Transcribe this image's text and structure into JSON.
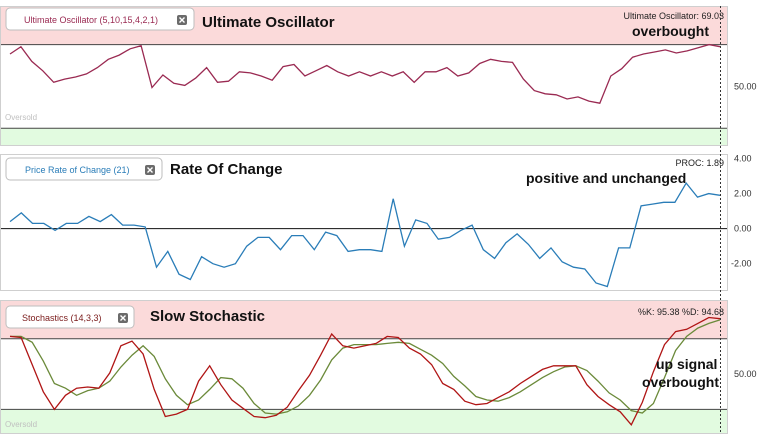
{
  "colors": {
    "overbought_band": "#fbdada",
    "oversold_band": "#e2fbe0",
    "band_line": "#444444",
    "uo_line": "#9a2a52",
    "uo_badge_text": "#9a2a52",
    "roc_line": "#2a7db8",
    "roc_badge_text": "#2a7db8",
    "stoch_k": "#b01515",
    "stoch_d": "#6b8a3a",
    "stoch_badge_text": "#7a1a1a",
    "zero_line": "#111111"
  },
  "panels": {
    "uo": {
      "badge_label": "Ultimate Oscillator (5,10,15,4,2,1)",
      "title": "Ultimate Oscillator",
      "readout": "Ultimate Oscillator: 69.03",
      "annotation": "overbought",
      "tick_label": "50.00",
      "oversold_label": "Oversold"
    },
    "roc": {
      "badge_label": "Price Rate of Change (21)",
      "title": "Rate Of Change",
      "readout": "PROC: 1.89",
      "annotation": "positive and unchanged",
      "tick_labels": [
        "4.00",
        "2.00",
        "0.00",
        "-2.00"
      ]
    },
    "stoch": {
      "badge_label": "Stochastics (14,3,3)",
      "title": "Slow Stochastic",
      "readout": "%K: 95.38 %D: 94.68",
      "annotation_line1": "up signal",
      "annotation_line2": "overbought",
      "tick_label": "50.00",
      "oversold_label": "Oversold"
    }
  },
  "chart_data": [
    {
      "type": "line",
      "name": "uo-panel",
      "title": "Ultimate Oscillator (5,10,15,4,2,1)",
      "ylim": [
        22,
        88
      ],
      "overbought": 70,
      "oversold": 30,
      "yticks": [
        50
      ],
      "series": [
        {
          "name": "Ultimate Oscillator",
          "values": [
            65.5,
            69,
            62,
            57.5,
            52,
            53.5,
            54.5,
            56,
            59,
            63,
            65,
            68,
            69.5,
            49.5,
            55.5,
            51.5,
            50.5,
            54,
            59,
            52,
            52.5,
            57,
            56.5,
            55,
            53,
            59.5,
            60.5,
            55,
            57.5,
            60,
            57,
            55,
            57,
            55,
            57,
            55,
            57,
            52,
            57,
            57,
            59,
            55,
            56.5,
            61,
            63,
            62,
            61.5,
            53.5,
            48,
            46.5,
            46,
            44,
            45,
            43,
            42,
            55,
            58.5,
            64,
            65.5,
            66.5,
            67.5,
            66,
            67,
            68.5,
            70,
            69
          ]
        }
      ]
    },
    {
      "type": "line",
      "name": "roc-panel",
      "title": "Price Rate of Change (21)",
      "ylim": [
        -3.5,
        4.2
      ],
      "zero": 0,
      "yticks": [
        4,
        2,
        0,
        -2
      ],
      "series": [
        {
          "name": "PROC",
          "values": [
            0.4,
            0.9,
            0.3,
            0.3,
            -0.1,
            0.3,
            0.3,
            0.7,
            0.4,
            0.8,
            0.2,
            0.2,
            0.1,
            -2.2,
            -1.3,
            -2.6,
            -2.9,
            -1.6,
            -2.0,
            -2.2,
            -2.0,
            -1.0,
            -0.5,
            -0.5,
            -1.2,
            -0.4,
            -0.4,
            -1.2,
            -0.2,
            -0.4,
            -1.3,
            -1.2,
            -1.2,
            -1.3,
            1.7,
            -1.0,
            0.5,
            0.3,
            -0.6,
            -0.5,
            -0.1,
            0.2,
            -1.2,
            -1.7,
            -0.8,
            -0.3,
            -0.9,
            -1.7,
            -1.1,
            -1.9,
            -2.2,
            -2.3,
            -3.1,
            -3.3,
            -1.1,
            -1.1,
            1.3,
            1.4,
            1.5,
            1.5,
            2.6,
            1.8,
            2.0,
            1.9
          ]
        }
      ]
    },
    {
      "type": "line",
      "name": "stoch-panel",
      "title": "Stochastics (14,3,3)",
      "ylim": [
        0,
        112
      ],
      "overbought": 80,
      "oversold": 20,
      "yticks": [
        50
      ],
      "series": [
        {
          "name": "%K",
          "values": [
            82,
            81,
            58,
            35,
            20,
            32,
            38,
            39,
            38,
            51,
            74,
            78,
            67,
            37,
            14,
            16,
            20,
            44,
            57,
            41,
            28,
            21,
            14,
            13,
            15,
            22,
            36,
            49,
            66,
            84,
            74,
            72,
            74,
            76,
            82,
            81,
            72,
            67,
            58,
            42,
            37,
            27,
            24,
            25,
            30,
            35,
            42,
            48,
            54,
            57,
            57,
            57,
            41,
            31,
            24,
            18,
            7,
            26,
            52,
            75,
            86,
            88,
            93,
            98,
            97
          ]
        },
        {
          "name": "%D",
          "values": [
            82,
            82,
            77,
            61,
            42,
            38,
            32,
            36,
            38,
            44,
            56,
            66,
            74,
            65,
            46,
            32,
            24,
            28,
            37,
            47,
            46,
            38,
            25,
            17,
            16,
            18,
            23,
            32,
            45,
            62,
            72,
            75,
            75,
            75,
            76,
            77,
            76,
            71,
            66,
            59,
            48,
            40,
            31,
            28,
            27,
            30,
            35,
            41,
            47,
            52,
            56,
            57,
            53,
            44,
            34,
            28,
            19,
            17,
            25,
            47,
            70,
            82,
            89,
            93,
            96
          ]
        }
      ]
    }
  ]
}
